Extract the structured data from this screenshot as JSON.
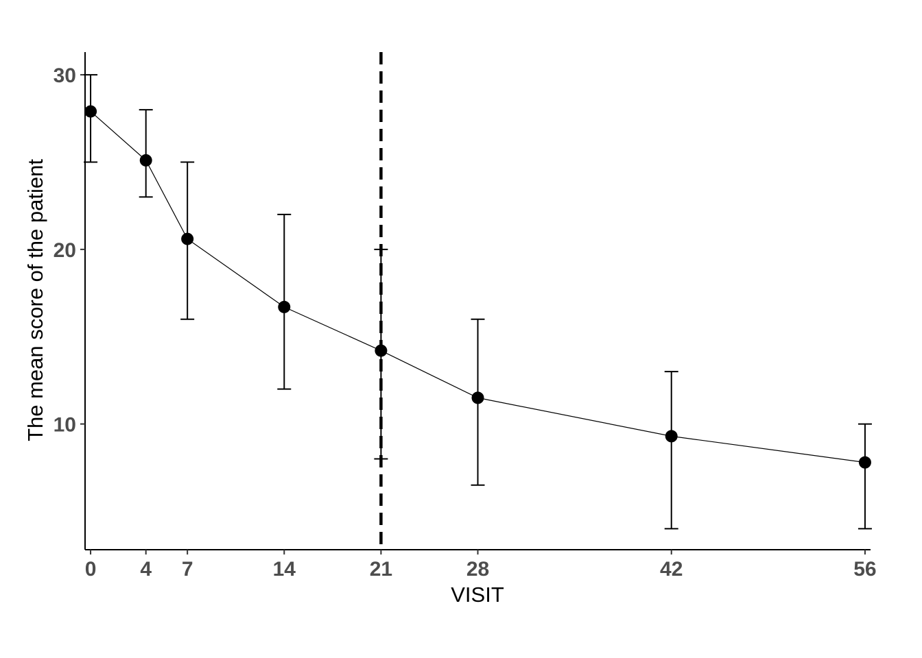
{
  "chart_data": {
    "type": "line",
    "title": "",
    "xlabel": "VISIT",
    "ylabel": "The mean score of the patient",
    "x": [
      0,
      4,
      7,
      14,
      21,
      28,
      42,
      56
    ],
    "x_ticks": [
      "0",
      "4",
      "7",
      "14",
      "21",
      "28",
      "42",
      "56"
    ],
    "y_ticks": [
      "10",
      "20",
      "30"
    ],
    "series": [
      {
        "values": [
          27.9,
          25.1,
          20.6,
          16.7,
          14.2,
          11.5,
          9.3,
          7.8
        ],
        "error_lower": [
          25.0,
          23.0,
          16.0,
          12.0,
          8.0,
          6.5,
          4.0,
          4.0
        ],
        "error_upper": [
          30.0,
          28.0,
          25.0,
          22.0,
          20.0,
          16.0,
          13.0,
          10.0
        ]
      }
    ],
    "reference_line": {
      "orientation": "vertical",
      "x": 21,
      "style": "dashed"
    },
    "xlim": [
      -0.4,
      56.4
    ],
    "ylim": [
      2.8,
      31.3
    ],
    "grid": false,
    "legend": "none",
    "colors": {
      "line": "#000000",
      "points": "#000000",
      "tick_labels": "#4d4d4d"
    }
  }
}
